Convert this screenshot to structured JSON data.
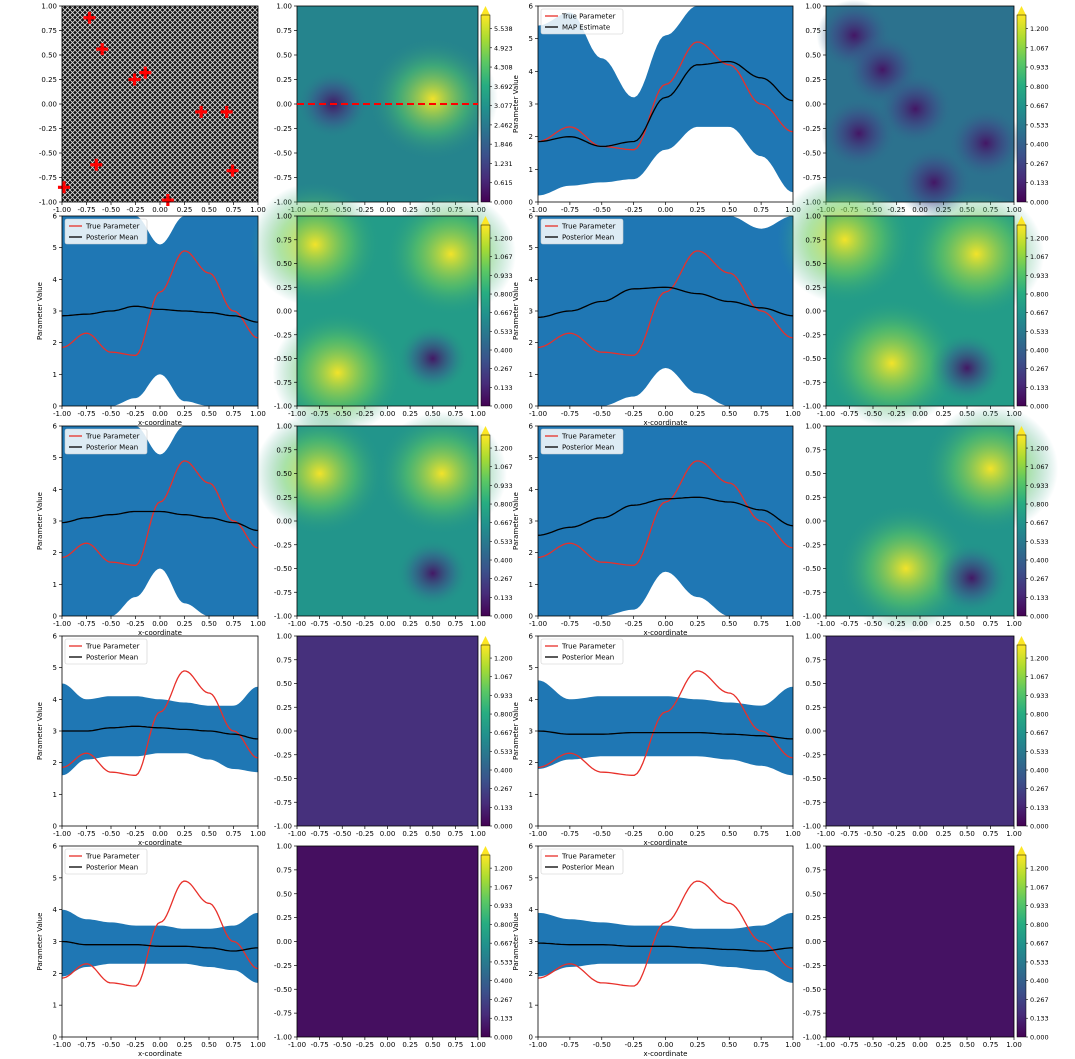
{
  "figure": {
    "line_legend": [
      "True Parameter",
      "Posterior Mean"
    ],
    "line_legend_first": [
      "True Parameter",
      "MAP Estimate"
    ],
    "xlabel": "x-coordinate",
    "ylabel": "Parameter Value",
    "xticks": [
      "-1.00",
      "-0.75",
      "-0.50",
      "-0.25",
      "0.00",
      "0.25",
      "0.50",
      "0.75",
      "1.00"
    ],
    "yticks_line": [
      "0",
      "1",
      "2",
      "3",
      "4",
      "5",
      "6"
    ],
    "yticks_field": [
      "-1.00",
      "-0.75",
      "-0.50",
      "-0.25",
      "0.00",
      "0.25",
      "0.50",
      "0.75",
      "1.00"
    ],
    "colorbar_mean": [
      "0.000",
      "0.615",
      "1.231",
      "1.846",
      "2.462",
      "3.077",
      "3.692",
      "4.308",
      "4.923",
      "5.538"
    ],
    "colorbar_std": [
      "0.000",
      "0.133",
      "0.267",
      "0.400",
      "0.533",
      "0.667",
      "0.800",
      "0.933",
      "1.067",
      "1.200"
    ],
    "colors": {
      "true_line": "#e8302a",
      "estimate_line": "#000000",
      "band": "#1f77b4",
      "sensor": "#ff0000",
      "transect": "#ff0000",
      "colormap": "viridis"
    }
  },
  "chart_data": [
    {
      "type": "scatter",
      "panel": "sensor-locations",
      "marker": "plus",
      "color": "#ff0000",
      "xlim": [
        -1,
        1
      ],
      "ylim": [
        -1,
        1
      ],
      "points": [
        [
          -0.72,
          0.88
        ],
        [
          -0.59,
          0.56
        ],
        [
          -0.26,
          0.25
        ],
        [
          -0.15,
          0.32
        ],
        [
          0.42,
          -0.08
        ],
        [
          0.68,
          -0.08
        ],
        [
          -0.65,
          -0.62
        ],
        [
          0.74,
          -0.68
        ],
        [
          -0.98,
          -0.85
        ],
        [
          0.08,
          -0.98
        ]
      ]
    },
    {
      "type": "heatmap",
      "panel": "true-parameter-field",
      "colormap": "viridis",
      "zlim": [
        0,
        5.538
      ],
      "features": [
        {
          "x": -0.6,
          "y": 0.0,
          "kind": "low"
        },
        {
          "x": 0.5,
          "y": 0.05,
          "kind": "high"
        }
      ],
      "transect": {
        "y": 0.0,
        "style": "dashed",
        "color": "#ff0000"
      }
    },
    {
      "type": "line",
      "panel": "map-estimate",
      "xlim": [
        -1,
        1
      ],
      "ylim": [
        0,
        6
      ],
      "x": [
        -1,
        -0.75,
        -0.5,
        -0.25,
        0,
        0.25,
        0.5,
        0.75,
        1
      ],
      "series": [
        {
          "name": "True Parameter",
          "values": [
            1.85,
            2.3,
            1.7,
            1.6,
            3.6,
            4.9,
            4.2,
            3.0,
            2.15
          ]
        },
        {
          "name": "MAP Estimate",
          "values": [
            1.85,
            2.0,
            1.7,
            1.85,
            3.2,
            4.2,
            4.3,
            3.8,
            3.1
          ]
        }
      ],
      "band": {
        "lower": [
          0.2,
          0.5,
          0.6,
          0.7,
          1.6,
          2.3,
          2.3,
          1.4,
          0.3
        ],
        "upper": [
          5.4,
          5.8,
          4.4,
          3.2,
          5.1,
          6.0,
          6.0,
          6.0,
          6.0
        ]
      }
    },
    {
      "type": "heatmap",
      "panel": "map-std",
      "colormap": "viridis",
      "zlim": [
        0,
        1.2
      ],
      "features": [
        {
          "x": -0.7,
          "y": 0.7,
          "kind": "low"
        },
        {
          "x": -0.4,
          "y": 0.35,
          "kind": "low"
        },
        {
          "x": -0.05,
          "y": -0.05,
          "kind": "low"
        },
        {
          "x": -0.65,
          "y": -0.3,
          "kind": "low"
        },
        {
          "x": 0.7,
          "y": -0.4,
          "kind": "low"
        },
        {
          "x": 0.15,
          "y": -0.8,
          "kind": "low"
        }
      ]
    },
    {
      "type": "line",
      "panel": "row2-left",
      "xlim": [
        -1,
        1
      ],
      "ylim": [
        0,
        6
      ],
      "x": [
        -1,
        -0.75,
        -0.5,
        -0.25,
        0,
        0.25,
        0.5,
        0.75,
        1
      ],
      "series": [
        {
          "name": "True Parameter",
          "values": [
            1.85,
            2.3,
            1.7,
            1.6,
            3.6,
            4.9,
            4.2,
            3.0,
            2.15
          ]
        },
        {
          "name": "Posterior Mean",
          "values": [
            2.85,
            2.9,
            3.0,
            3.15,
            3.05,
            3.0,
            2.95,
            2.85,
            2.65
          ]
        }
      ],
      "band": {
        "lower": [
          0.0,
          0.0,
          0.0,
          0.25,
          1.0,
          0.15,
          0.0,
          0.0,
          0.0
        ],
        "upper": [
          6.0,
          6.0,
          6.0,
          6.0,
          5.1,
          6.0,
          6.0,
          6.0,
          6.0
        ]
      }
    },
    {
      "type": "heatmap",
      "panel": "row2-left-std",
      "colormap": "viridis",
      "zlim": [
        0,
        1.2
      ],
      "features": [
        {
          "x": -0.8,
          "y": 0.7,
          "kind": "high"
        },
        {
          "x": 0.7,
          "y": 0.6,
          "kind": "high"
        },
        {
          "x": -0.55,
          "y": -0.65,
          "kind": "high"
        },
        {
          "x": 0.5,
          "y": -0.5,
          "kind": "low"
        }
      ]
    },
    {
      "type": "line",
      "panel": "row2-right",
      "xlim": [
        -1,
        1
      ],
      "ylim": [
        0,
        6
      ],
      "x": [
        -1,
        -0.75,
        -0.5,
        -0.25,
        0,
        0.25,
        0.5,
        0.75,
        1
      ],
      "series": [
        {
          "name": "True Parameter",
          "values": [
            1.85,
            2.3,
            1.7,
            1.6,
            3.6,
            4.9,
            4.2,
            3.0,
            2.15
          ]
        },
        {
          "name": "Posterior Mean",
          "values": [
            2.8,
            3.0,
            3.3,
            3.7,
            3.75,
            3.55,
            3.3,
            3.1,
            2.85
          ]
        }
      ],
      "band": {
        "lower": [
          0.0,
          0.0,
          0.0,
          0.3,
          1.2,
          0.4,
          0.0,
          0.0,
          0.0
        ],
        "upper": [
          6.0,
          6.0,
          6.0,
          6.0,
          6.0,
          6.0,
          6.0,
          5.6,
          6.0
        ]
      }
    },
    {
      "type": "heatmap",
      "panel": "row2-right-std",
      "colormap": "viridis",
      "zlim": [
        0,
        1.2
      ],
      "features": [
        {
          "x": -0.8,
          "y": 0.75,
          "kind": "high"
        },
        {
          "x": 0.6,
          "y": 0.6,
          "kind": "high"
        },
        {
          "x": -0.3,
          "y": -0.55,
          "kind": "high"
        },
        {
          "x": 0.5,
          "y": -0.6,
          "kind": "low"
        }
      ]
    },
    {
      "type": "line",
      "panel": "row3-left",
      "xlim": [
        -1,
        1
      ],
      "ylim": [
        0,
        6
      ],
      "x": [
        -1,
        -0.75,
        -0.5,
        -0.25,
        0,
        0.25,
        0.5,
        0.75,
        1
      ],
      "series": [
        {
          "name": "True Parameter",
          "values": [
            1.85,
            2.3,
            1.7,
            1.6,
            3.6,
            4.9,
            4.2,
            3.0,
            2.15
          ]
        },
        {
          "name": "Posterior Mean",
          "values": [
            2.95,
            3.1,
            3.2,
            3.3,
            3.3,
            3.2,
            3.1,
            2.95,
            2.7
          ]
        }
      ],
      "band": {
        "lower": [
          0.0,
          0.0,
          0.0,
          0.6,
          1.5,
          0.4,
          0.0,
          0.0,
          0.0
        ],
        "upper": [
          6.0,
          6.0,
          6.0,
          6.0,
          5.1,
          6.0,
          6.0,
          6.0,
          6.0
        ]
      }
    },
    {
      "type": "heatmap",
      "panel": "row3-left-std",
      "colormap": "viridis",
      "zlim": [
        0,
        1.2
      ],
      "features": [
        {
          "x": -0.75,
          "y": 0.5,
          "kind": "high"
        },
        {
          "x": 0.6,
          "y": 0.5,
          "kind": "high"
        },
        {
          "x": 0.5,
          "y": -0.55,
          "kind": "low"
        }
      ]
    },
    {
      "type": "line",
      "panel": "row3-right",
      "xlim": [
        -1,
        1
      ],
      "ylim": [
        0,
        6
      ],
      "x": [
        -1,
        -0.75,
        -0.5,
        -0.25,
        0,
        0.25,
        0.5,
        0.75,
        1
      ],
      "series": [
        {
          "name": "True Parameter",
          "values": [
            1.85,
            2.3,
            1.7,
            1.6,
            3.6,
            4.9,
            4.2,
            3.0,
            2.15
          ]
        },
        {
          "name": "Posterior Mean",
          "values": [
            2.55,
            2.8,
            3.1,
            3.5,
            3.7,
            3.75,
            3.6,
            3.35,
            2.85
          ]
        }
      ],
      "band": {
        "lower": [
          0.0,
          0.0,
          0.0,
          0.2,
          1.4,
          0.6,
          0.0,
          0.0,
          0.0
        ],
        "upper": [
          6.0,
          6.0,
          6.0,
          6.0,
          6.0,
          6.0,
          6.0,
          6.0,
          6.0
        ]
      }
    },
    {
      "type": "heatmap",
      "panel": "row3-right-std",
      "colormap": "viridis",
      "zlim": [
        0,
        1.2
      ],
      "features": [
        {
          "x": 0.75,
          "y": 0.55,
          "kind": "high"
        },
        {
          "x": -0.15,
          "y": -0.5,
          "kind": "high"
        },
        {
          "x": 0.55,
          "y": -0.6,
          "kind": "low"
        }
      ]
    },
    {
      "type": "line",
      "panel": "row4-left",
      "xlim": [
        -1,
        1
      ],
      "ylim": [
        0,
        6
      ],
      "x": [
        -1,
        -0.75,
        -0.5,
        -0.25,
        0,
        0.25,
        0.5,
        0.75,
        1
      ],
      "series": [
        {
          "name": "True Parameter",
          "values": [
            1.85,
            2.3,
            1.7,
            1.6,
            3.6,
            4.9,
            4.2,
            3.0,
            2.15
          ]
        },
        {
          "name": "Posterior Mean",
          "values": [
            3.0,
            3.0,
            3.1,
            3.15,
            3.1,
            3.05,
            3.0,
            2.9,
            2.75
          ]
        }
      ],
      "band": {
        "lower": [
          1.6,
          2.1,
          2.2,
          2.2,
          2.3,
          2.3,
          2.1,
          1.8,
          1.7
        ],
        "upper": [
          4.5,
          4.0,
          4.1,
          4.1,
          4.0,
          3.9,
          3.8,
          3.8,
          4.4
        ]
      }
    },
    {
      "type": "heatmap",
      "panel": "row4-left-std",
      "colormap": "viridis",
      "zlim": [
        0,
        1.2
      ],
      "features": []
    },
    {
      "type": "line",
      "panel": "row4-right",
      "xlim": [
        -1,
        1
      ],
      "ylim": [
        0,
        6
      ],
      "x": [
        -1,
        -0.75,
        -0.5,
        -0.25,
        0,
        0.25,
        0.5,
        0.75,
        1
      ],
      "series": [
        {
          "name": "True Parameter",
          "values": [
            1.85,
            2.3,
            1.7,
            1.6,
            3.6,
            4.9,
            4.2,
            3.0,
            2.15
          ]
        },
        {
          "name": "Posterior Mean",
          "values": [
            3.0,
            2.9,
            2.9,
            2.95,
            2.95,
            2.95,
            2.9,
            2.85,
            2.75
          ]
        }
      ],
      "band": {
        "lower": [
          1.8,
          2.1,
          2.2,
          2.2,
          2.2,
          2.2,
          2.1,
          1.9,
          1.6
        ],
        "upper": [
          4.6,
          4.0,
          4.1,
          4.1,
          4.1,
          4.0,
          3.9,
          3.8,
          4.4
        ]
      }
    },
    {
      "type": "heatmap",
      "panel": "row4-right-std",
      "colormap": "viridis",
      "zlim": [
        0,
        1.2
      ],
      "features": []
    },
    {
      "type": "line",
      "panel": "row5-left",
      "xlim": [
        -1,
        1
      ],
      "ylim": [
        0,
        6
      ],
      "x": [
        -1,
        -0.75,
        -0.5,
        -0.25,
        0,
        0.25,
        0.5,
        0.75,
        1
      ],
      "series": [
        {
          "name": "True Parameter",
          "values": [
            1.85,
            2.3,
            1.7,
            1.6,
            3.6,
            4.9,
            4.2,
            3.0,
            2.15
          ]
        },
        {
          "name": "Posterior Mean",
          "values": [
            3.0,
            2.9,
            2.9,
            2.9,
            2.85,
            2.85,
            2.8,
            2.7,
            2.8
          ]
        }
      ],
      "band": {
        "lower": [
          1.9,
          2.2,
          2.3,
          2.3,
          2.3,
          2.3,
          2.2,
          2.1,
          1.7
        ],
        "upper": [
          4.0,
          3.7,
          3.6,
          3.5,
          3.5,
          3.4,
          3.4,
          3.5,
          3.9
        ]
      }
    },
    {
      "type": "heatmap",
      "panel": "row5-left-std",
      "colormap": "viridis",
      "zlim": [
        0,
        1.2
      ],
      "features": []
    },
    {
      "type": "line",
      "panel": "row5-right",
      "xlim": [
        -1,
        1
      ],
      "ylim": [
        0,
        6
      ],
      "x": [
        -1,
        -0.75,
        -0.5,
        -0.25,
        0,
        0.25,
        0.5,
        0.75,
        1
      ],
      "series": [
        {
          "name": "True Parameter",
          "values": [
            1.85,
            2.3,
            1.7,
            1.6,
            3.6,
            4.9,
            4.2,
            3.0,
            2.15
          ]
        },
        {
          "name": "Posterior Mean",
          "values": [
            2.95,
            2.9,
            2.9,
            2.85,
            2.85,
            2.8,
            2.75,
            2.7,
            2.8
          ]
        }
      ],
      "band": {
        "lower": [
          1.9,
          2.2,
          2.3,
          2.3,
          2.3,
          2.3,
          2.2,
          2.1,
          1.7
        ],
        "upper": [
          3.9,
          3.7,
          3.6,
          3.5,
          3.5,
          3.4,
          3.4,
          3.5,
          3.9
        ]
      }
    },
    {
      "type": "heatmap",
      "panel": "row5-right-std",
      "colormap": "viridis",
      "zlim": [
        0,
        1.2
      ],
      "features": []
    }
  ]
}
